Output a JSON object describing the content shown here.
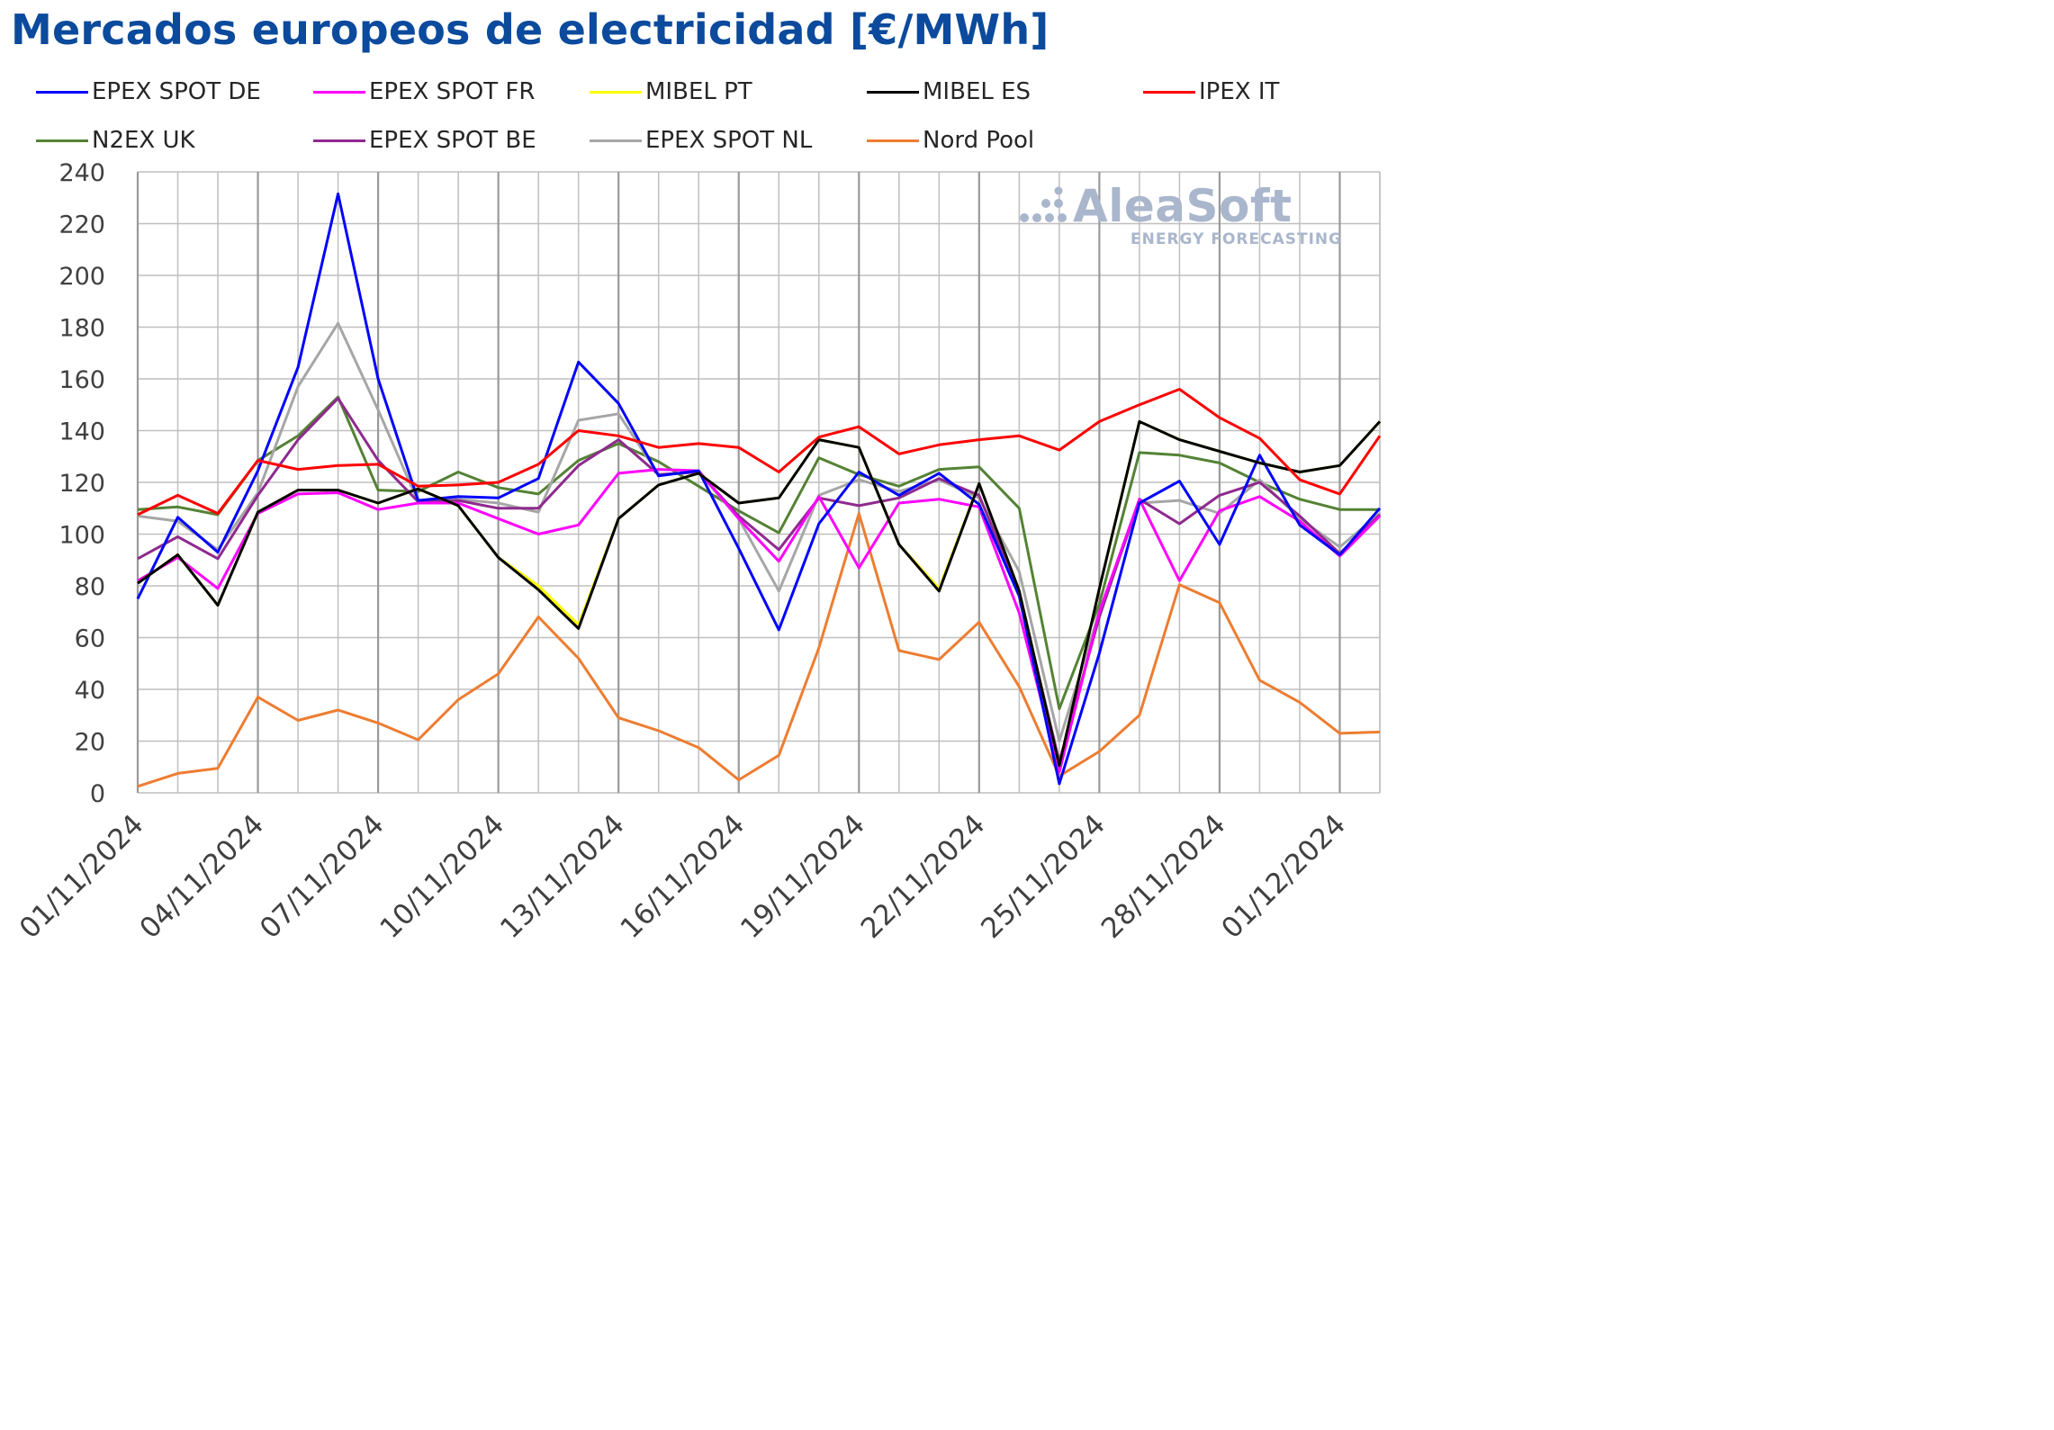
{
  "chart_data": {
    "type": "line",
    "title": "Mercados europeos de electricidad [€/MWh]",
    "xlabel": "",
    "ylabel": "",
    "ylim": [
      0,
      240
    ],
    "ytick_step": 20,
    "x_ticks": [
      "01/11/2024",
      "04/11/2024",
      "07/11/2024",
      "10/11/2024",
      "13/11/2024",
      "16/11/2024",
      "19/11/2024",
      "22/11/2024",
      "25/11/2024",
      "28/11/2024",
      "01/12/2024"
    ],
    "x": [
      "01/11/2024",
      "02/11/2024",
      "03/11/2024",
      "04/11/2024",
      "05/11/2024",
      "06/11/2024",
      "07/11/2024",
      "08/11/2024",
      "09/11/2024",
      "10/11/2024",
      "11/11/2024",
      "12/11/2024",
      "13/11/2024",
      "14/11/2024",
      "15/11/2024",
      "16/11/2024",
      "17/11/2024",
      "18/11/2024",
      "19/11/2024",
      "20/11/2024",
      "21/11/2024",
      "22/11/2024",
      "23/11/2024",
      "24/11/2024",
      "25/11/2024",
      "26/11/2024",
      "27/11/2024",
      "28/11/2024",
      "29/11/2024",
      "30/11/2024",
      "01/12/2024",
      "02/12/2024"
    ],
    "grid": true,
    "legend_position": "top",
    "series": [
      {
        "name": "Nord Pool",
        "color": "#ed7d31",
        "values": [
          2.5,
          7.5,
          9.5,
          37,
          28,
          32,
          27,
          20.5,
          36,
          46,
          68,
          52,
          29,
          24,
          17.5,
          5,
          14.5,
          56,
          108,
          55,
          51.5,
          66,
          41,
          6.5,
          16,
          30,
          80.5,
          73.5,
          43.5,
          35,
          23,
          23.5
        ]
      },
      {
        "name": "N2EX UK",
        "color": "#548235",
        "values": [
          109.5,
          110.5,
          107.5,
          128.5,
          138,
          153,
          117,
          116.5,
          124,
          118,
          115.5,
          128.5,
          135,
          128,
          118.5,
          109,
          100.5,
          129.5,
          123,
          118.5,
          125,
          126,
          110,
          32.5,
          73,
          131.5,
          130.5,
          127.5,
          120,
          113.5,
          109.5,
          109.5
        ]
      },
      {
        "name": "EPEX SPOT NL",
        "color": "#a6a6a6",
        "values": [
          107,
          105,
          94,
          116,
          157,
          181.5,
          148,
          112.5,
          113.5,
          112,
          108.5,
          144,
          146.5,
          123,
          124,
          106,
          78,
          115,
          121,
          116.5,
          121,
          114,
          85.5,
          20,
          70,
          112,
          113,
          108,
          121,
          106,
          95,
          108
        ]
      },
      {
        "name": "EPEX SPOT BE",
        "color": "#8e2a8e",
        "values": [
          90.5,
          99,
          90.5,
          115,
          136.5,
          152.5,
          128.5,
          112.5,
          113,
          110,
          110,
          126.5,
          136.5,
          123,
          124,
          107,
          94,
          114,
          111,
          114,
          121.5,
          115,
          77,
          12,
          68,
          113.5,
          104,
          115,
          120,
          107,
          92.5,
          107.5
        ]
      },
      {
        "name": "EPEX SPOT FR",
        "color": "#ff00ff",
        "values": [
          82,
          91,
          79,
          108,
          115.5,
          116,
          109.5,
          112,
          112,
          106,
          100,
          103.5,
          123.5,
          125,
          124.5,
          106,
          89.5,
          114.5,
          87,
          112,
          113.5,
          110.5,
          69.5,
          8,
          70,
          113.5,
          82,
          109,
          114.5,
          105,
          91.5,
          107
        ]
      },
      {
        "name": "EPEX SPOT DE",
        "color": "#0000ff",
        "values": [
          75,
          106.5,
          93,
          124.5,
          164.5,
          231.5,
          160,
          113,
          114.5,
          114,
          121.5,
          166.5,
          150.5,
          122.5,
          124.5,
          94.5,
          63,
          104,
          124,
          115,
          123.5,
          111.5,
          76,
          3.5,
          54,
          112,
          120.5,
          96,
          130.5,
          103.5,
          92,
          110
        ]
      },
      {
        "name": "MIBEL PT",
        "color": "#ffff00",
        "values": [
          81,
          92,
          72.5,
          108.5,
          117,
          117,
          112,
          117.5,
          111,
          91,
          80,
          65,
          106,
          119,
          123.5,
          112,
          114,
          136.5,
          133.5,
          96,
          79,
          119.5,
          78,
          10.5,
          79,
          143.5,
          136.5,
          132,
          127.5,
          124,
          126.5,
          143.5
        ]
      },
      {
        "name": "MIBEL ES",
        "color": "#000000",
        "values": [
          81,
          92,
          72.5,
          108.5,
          117,
          117,
          112,
          117.5,
          111,
          91,
          78.5,
          63.5,
          106,
          119,
          123.5,
          112,
          114,
          136.5,
          133.5,
          96,
          78,
          119.5,
          78,
          10.5,
          79,
          143.5,
          136.5,
          132,
          127.5,
          124,
          126.5,
          143.5
        ]
      },
      {
        "name": "IPEX IT",
        "color": "#ff0000",
        "values": [
          107.5,
          115,
          108,
          128.5,
          125,
          126.5,
          127,
          118.5,
          119,
          120,
          127,
          140,
          138,
          133.5,
          135,
          133.5,
          124,
          137.5,
          141.5,
          131,
          134.5,
          136.5,
          138,
          132.5,
          143.5,
          150,
          156,
          145,
          137,
          121,
          115.5,
          138
        ]
      }
    ]
  },
  "legend": [
    {
      "label": "EPEX SPOT DE",
      "color": "#0000ff"
    },
    {
      "label": "EPEX SPOT FR",
      "color": "#ff00ff"
    },
    {
      "label": "MIBEL PT",
      "color": "#ffff00"
    },
    {
      "label": "MIBEL ES",
      "color": "#000000"
    },
    {
      "label": "IPEX IT",
      "color": "#ff0000"
    },
    {
      "label": "N2EX UK",
      "color": "#548235"
    },
    {
      "label": "EPEX SPOT BE",
      "color": "#8e2a8e"
    },
    {
      "label": "EPEX SPOT NL",
      "color": "#a6a6a6"
    },
    {
      "label": "Nord Pool",
      "color": "#ed7d31"
    }
  ],
  "logo": {
    "name": "AleaSoft",
    "tagline": "ENERGY FORECASTING",
    "color": "#a9b6cc"
  },
  "colors": {
    "title": "#0b4a9c",
    "grid": "#bfbfbf",
    "major_grid": "#9a9a9a",
    "axis_text": "#404040"
  }
}
